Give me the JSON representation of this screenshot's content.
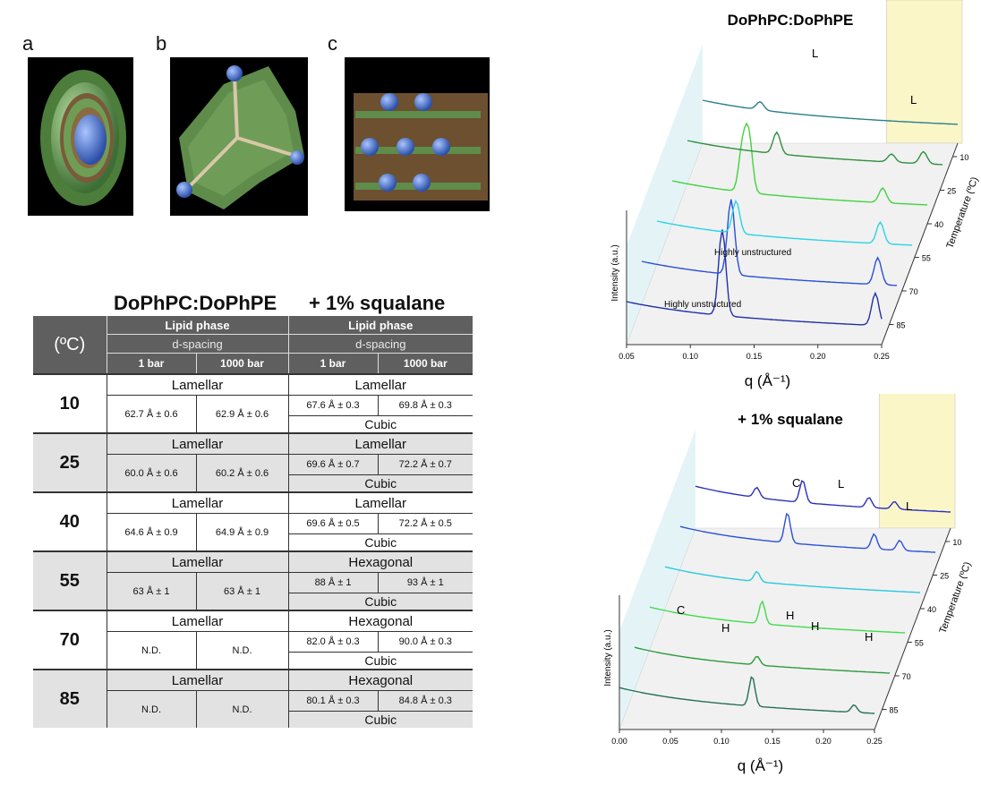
{
  "panel_letters": [
    "a",
    "b",
    "c"
  ],
  "table": {
    "title_left": "DoPhPC:DoPhPE",
    "title_right": "+ 1% squalane",
    "header": {
      "temp_label": "(ºC)",
      "group1": "Lipid phase",
      "group2": "Lipid phase",
      "sub1": "d-spacing",
      "sub2": "d-spacing",
      "p1": "1 bar",
      "p2": "1000 bar",
      "p3": "1 bar",
      "p4": "1000 bar"
    },
    "rows": [
      {
        "temp": "10",
        "left_phase": "Lamellar",
        "l1": "62.7 Å ± 0.6",
        "l2": "62.9 Å ± 0.6",
        "right_phase": "Lamellar",
        "r1": "67.6 Å ± 0.3",
        "r2": "69.8 Å ± 0.3",
        "right_extra": "Cubic"
      },
      {
        "temp": "25",
        "left_phase": "Lamellar",
        "l1": "60.0 Å ± 0.6",
        "l2": "60.2 Å ± 0.6",
        "right_phase": "Lamellar",
        "r1": "69.6 Å ± 0.7",
        "r2": "72.2 Å ± 0.7",
        "right_extra": "Cubic"
      },
      {
        "temp": "40",
        "left_phase": "Lamellar",
        "l1": "64.6 Å ± 0.9",
        "l2": "64.9 Å ± 0.9",
        "right_phase": "Lamellar",
        "r1": "69.6 Å ± 0.5",
        "r2": "72.2 Å ± 0.5",
        "right_extra": "Cubic"
      },
      {
        "temp": "55",
        "left_phase": "Lamellar",
        "l1": "63 Å ± 1",
        "l2": "63 Å ± 1",
        "right_phase": "Hexagonal",
        "r1": "88 Å ± 1",
        "r2": "93 Å ± 1",
        "right_extra": "Cubic"
      },
      {
        "temp": "70",
        "left_phase": "Lamellar",
        "l1": "N.D.",
        "l2": "N.D.",
        "right_phase": "Hexagonal",
        "r1": "82.0 Å ± 0.3",
        "r2": "90.0 Å ± 0.3",
        "right_extra": "Cubic"
      },
      {
        "temp": "85",
        "left_phase": "Lamellar",
        "l1": "N.D.",
        "l2": "N.D.",
        "right_phase": "Hexagonal",
        "r1": "80.1 Å ± 0.3",
        "r2": "84.8 Å ± 0.3",
        "right_extra": "Cubic"
      }
    ]
  },
  "chart_data": [
    {
      "type": "line",
      "title": "DoPhPC:DoPhPE",
      "xlabel": "q (Å⁻¹)",
      "ylabel": "Intensity (a.u.)",
      "zlabel": "Temperature (ºC)",
      "x_ticks": [
        "0.05",
        "0.10",
        "0.15",
        "0.20",
        "0.25"
      ],
      "z_ticks": [
        "10",
        "25",
        "40",
        "55",
        "70",
        "85"
      ],
      "xlim": [
        0.05,
        0.25
      ],
      "annotations": [
        "L",
        "L",
        "Highly unstructured",
        "Highly unstructured"
      ],
      "series": [
        {
          "temperature": 85,
          "color": "#2a7f8a",
          "peaks": [
            [
              0.095,
              0.3
            ]
          ]
        },
        {
          "temperature": 70,
          "color": "#2e8f3a",
          "peaks": [
            [
              0.12,
              0.8
            ],
            [
              0.21,
              0.3
            ],
            [
              0.235,
              0.45
            ]
          ]
        },
        {
          "temperature": 55,
          "color": "#3ed43e",
          "peaks": [
            [
              0.105,
              1.6
            ],
            [
              0.11,
              2.1
            ],
            [
              0.215,
              0.55
            ]
          ]
        },
        {
          "temperature": 40,
          "color": "#27d4e6",
          "peaks": [
            [
              0.112,
              1.2
            ],
            [
              0.225,
              0.8
            ]
          ]
        },
        {
          "temperature": 25,
          "color": "#2a4fd8",
          "peaks": [
            [
              0.12,
              2.8
            ],
            [
              0.235,
              1.0
            ]
          ]
        },
        {
          "temperature": 10,
          "color": "#2030a8",
          "peaks": [
            [
              0.125,
              3.2
            ],
            [
              0.245,
              1.2
            ]
          ]
        }
      ]
    },
    {
      "type": "line",
      "title": "+ 1% squalane",
      "xlabel": "q (Å⁻¹)",
      "ylabel": "Intensity (a.u.)",
      "zlabel": "Temperature (ºC)",
      "x_ticks": [
        "0.00",
        "0.05",
        "0.10",
        "0.15",
        "0.20",
        "0.25"
      ],
      "z_ticks": [
        "10",
        "25",
        "40",
        "55",
        "70",
        "85"
      ],
      "xlim": [
        0.0,
        0.25
      ],
      "annotations": [
        "C",
        "L",
        "L",
        "C",
        "H",
        "H",
        "H",
        "H"
      ],
      "series": [
        {
          "temperature": 85,
          "color": "#2a2fb8",
          "peaks": [
            [
              0.06,
              0.4
            ],
            [
              0.105,
              0.9
            ],
            [
              0.17,
              0.4
            ],
            [
              0.195,
              0.3
            ]
          ]
        },
        {
          "temperature": 70,
          "color": "#2a50d8",
          "peaks": [
            [
              0.105,
              1.2
            ],
            [
              0.19,
              0.6
            ],
            [
              0.215,
              0.4
            ]
          ]
        },
        {
          "temperature": 55,
          "color": "#27c8e0",
          "peaks": [
            [
              0.09,
              0.4
            ]
          ]
        },
        {
          "temperature": 40,
          "color": "#3edc4a",
          "peaks": [
            [
              0.11,
              0.9
            ]
          ]
        },
        {
          "temperature": 25,
          "color": "#2a9a3a",
          "peaks": [
            [
              0.12,
              0.35
            ]
          ]
        },
        {
          "temperature": 10,
          "color": "#246e56",
          "peaks": [
            [
              0.13,
              1.2
            ],
            [
              0.23,
              0.3
            ]
          ]
        }
      ]
    }
  ]
}
